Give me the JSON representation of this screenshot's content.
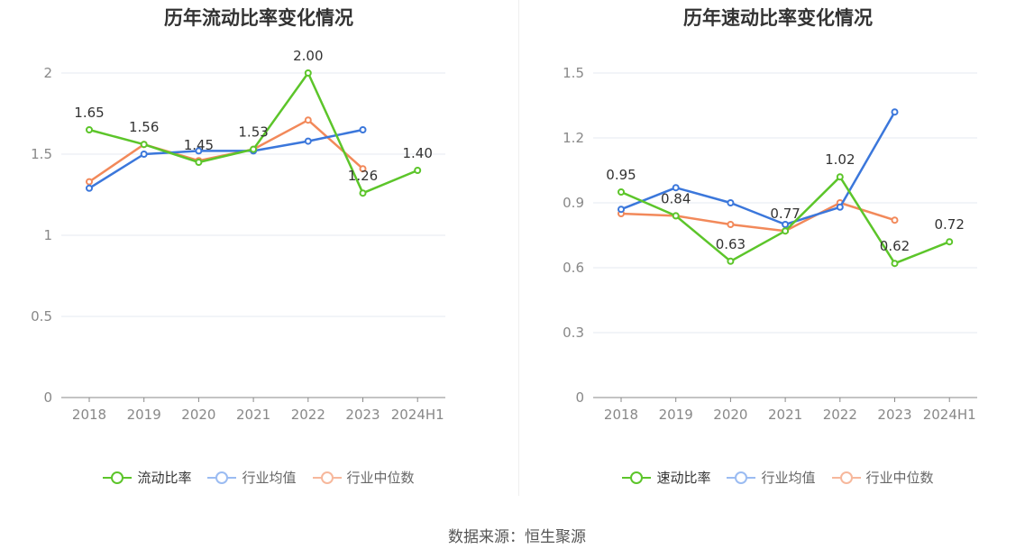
{
  "source": "数据来源：恒生聚源",
  "colors": {
    "company": "#5cc52a",
    "industry_avg": "#3b77db",
    "industry_median": "#f2895a"
  },
  "chart_data": [
    {
      "type": "line",
      "title": "历年流动比率变化情况",
      "categories": [
        "2018",
        "2019",
        "2020",
        "2021",
        "2022",
        "2023",
        "2024H1"
      ],
      "ylim": [
        0,
        2
      ],
      "yticks": [
        0,
        0.5,
        1,
        1.5,
        2
      ],
      "ytick_labels": [
        "0",
        "0.5",
        "1",
        "1.5",
        "2"
      ],
      "grid": true,
      "legend": "bottom-center",
      "series": [
        {
          "name": "流动比率",
          "color": "#5cc52a",
          "values": [
            1.65,
            1.56,
            1.45,
            1.53,
            2.0,
            1.26,
            1.4
          ],
          "labels": [
            "1.65",
            "1.56",
            "1.45",
            "1.53",
            "2.00",
            "1.26",
            "1.40"
          ]
        },
        {
          "name": "行业均值",
          "color": "#3b77db",
          "values": [
            1.29,
            1.5,
            1.52,
            1.52,
            1.58,
            1.65,
            null
          ]
        },
        {
          "name": "行业中位数",
          "color": "#f2895a",
          "values": [
            1.33,
            1.56,
            1.46,
            1.53,
            1.71,
            1.41,
            null
          ]
        }
      ]
    },
    {
      "type": "line",
      "title": "历年速动比率变化情况",
      "categories": [
        "2018",
        "2019",
        "2020",
        "2021",
        "2022",
        "2023",
        "2024H1"
      ],
      "ylim": [
        0,
        1.5
      ],
      "yticks": [
        0,
        0.3,
        0.6,
        0.9,
        1.2,
        1.5
      ],
      "ytick_labels": [
        "0",
        "0.3",
        "0.6",
        "0.9",
        "1.2",
        "1.5"
      ],
      "grid": true,
      "legend": "bottom-center",
      "series": [
        {
          "name": "速动比率",
          "color": "#5cc52a",
          "values": [
            0.95,
            0.84,
            0.63,
            0.77,
            1.02,
            0.62,
            0.72
          ],
          "labels": [
            "0.95",
            "0.84",
            "0.63",
            "0.77",
            "1.02",
            "0.62",
            "0.72"
          ]
        },
        {
          "name": "行业均值",
          "color": "#3b77db",
          "values": [
            0.87,
            0.97,
            0.9,
            0.8,
            0.88,
            1.32,
            null
          ]
        },
        {
          "name": "行业中位数",
          "color": "#f2895a",
          "values": [
            0.85,
            0.84,
            0.8,
            0.77,
            0.9,
            0.82,
            null
          ]
        }
      ]
    }
  ]
}
